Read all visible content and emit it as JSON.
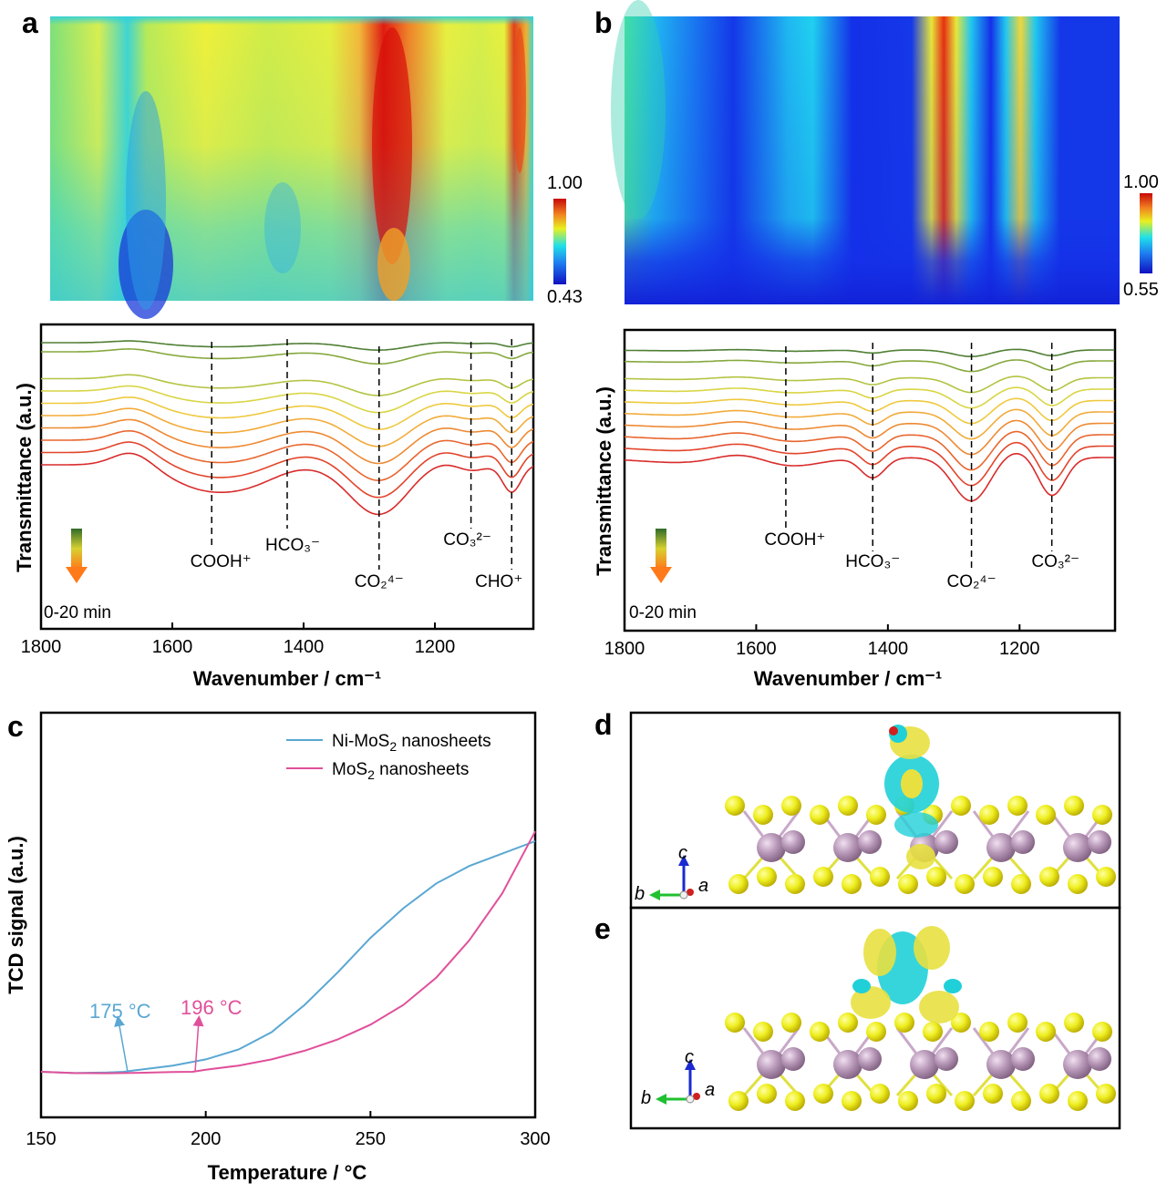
{
  "panels": {
    "a": "a",
    "b": "b",
    "c": "c",
    "d": "d",
    "e": "e"
  },
  "heatmaps": [
    {
      "id": "a",
      "colorbar_max": "1.00",
      "colorbar_min": "0.43"
    },
    {
      "id": "b",
      "colorbar_max": "1.00",
      "colorbar_min": "0.55"
    }
  ],
  "colors": {
    "heat_low": "#1a22d8",
    "heat_mid": "#19d2e0",
    "heat_high": "#d80808",
    "ni_mos2": "#5aa7d3",
    "mos2": "#e0509a",
    "time_arrow_top": "#2f6b2a",
    "time_arrow_bottom": "#ff7a1a",
    "sulfur": "#e8e020",
    "molybdenum": "#b896b8",
    "density_cyan": "#22d3d8"
  },
  "time_label": "0-20 min",
  "axis_letters": {
    "a": "a",
    "b": "b",
    "c": "c"
  },
  "chart_data": [
    {
      "type": "line",
      "panel": "a",
      "title": "",
      "xlabel": "Wavenumber / cm⁻¹",
      "ylabel": "Transmittance (a.u.)",
      "xlim": [
        1800,
        1050
      ],
      "xticks": [
        "1800",
        "1600",
        "1400",
        "1200"
      ],
      "series_count": 10,
      "series_colors": [
        "#d92b2b",
        "#e2452b",
        "#e8662e",
        "#ee8a33",
        "#f2ab3a",
        "#efc93f",
        "#d9d545",
        "#b4c443",
        "#86a83d",
        "#4f7f34"
      ],
      "annotations": [
        {
          "label": "COOH⁺",
          "x": 1540
        },
        {
          "label": "HCO₃⁻",
          "x": 1425
        },
        {
          "label": "CO₂⁴⁻",
          "x": 1285
        },
        {
          "label": "CO₃²⁻",
          "x": 1145
        },
        {
          "label": "CHO⁺",
          "x": 1083
        }
      ]
    },
    {
      "type": "line",
      "panel": "b",
      "title": "",
      "xlabel": "Wavenumber / cm⁻¹",
      "ylabel": "Transmittance (a.u.)",
      "xlim": [
        1800,
        1055
      ],
      "xticks": [
        "1800",
        "1600",
        "1400",
        "1200"
      ],
      "series_count": 10,
      "series_colors": [
        "#d92b2b",
        "#e2452b",
        "#e8662e",
        "#ee8a33",
        "#f2ab3a",
        "#efc93f",
        "#d9d545",
        "#b4c443",
        "#86a83d",
        "#4f7f34"
      ],
      "annotations": [
        {
          "label": "COOH⁺",
          "x": 1555
        },
        {
          "label": "HCO₃⁻",
          "x": 1423
        },
        {
          "label": "CO₂⁴⁻",
          "x": 1273
        },
        {
          "label": "CO₃²⁻",
          "x": 1151
        }
      ]
    },
    {
      "type": "line",
      "panel": "c",
      "title": "",
      "xlabel": "Temperature / °C",
      "ylabel": "TCD signal (a.u.)",
      "xlim": [
        150,
        300
      ],
      "xticks": [
        "150",
        "200",
        "250",
        "300"
      ],
      "legend_placement": "top-right",
      "series": [
        {
          "name": "Ni-MoS₂ nanosheets",
          "x": [
            150,
            160,
            170,
            175,
            180,
            190,
            200,
            210,
            220,
            230,
            240,
            250,
            260,
            270,
            280,
            290,
            300
          ],
          "y": [
            0.0,
            -0.005,
            -0.003,
            0.0,
            0.008,
            0.025,
            0.05,
            0.09,
            0.16,
            0.27,
            0.4,
            0.54,
            0.66,
            0.76,
            0.83,
            0.88,
            0.93
          ]
        },
        {
          "name": "MoS₂ nanosheets",
          "x": [
            150,
            160,
            170,
            180,
            190,
            196,
            200,
            210,
            220,
            230,
            240,
            250,
            260,
            270,
            280,
            290,
            300
          ],
          "y": [
            0.0,
            -0.005,
            -0.006,
            -0.004,
            -0.001,
            0.0,
            0.008,
            0.025,
            0.05,
            0.085,
            0.13,
            0.19,
            0.27,
            0.38,
            0.53,
            0.72,
            0.97
          ]
        }
      ],
      "annotations": [
        {
          "label": "175 °C",
          "x": 175
        },
        {
          "label": "196 °C",
          "x": 196
        }
      ]
    }
  ],
  "structures": {
    "d": {
      "axis_c": "c",
      "axis_b": "b",
      "axis_a": "a"
    },
    "e": {
      "axis_c": "c",
      "axis_b": "b",
      "axis_a": "a"
    }
  }
}
